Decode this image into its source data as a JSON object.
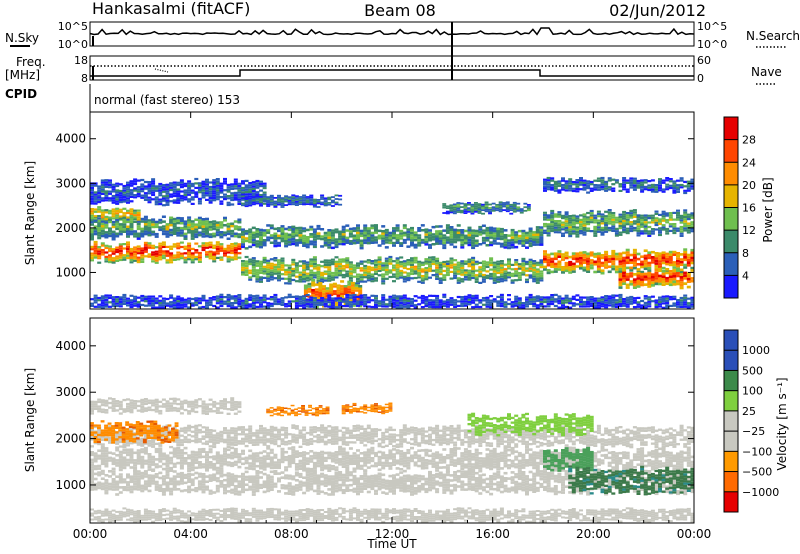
{
  "header": {
    "station": "Hankasalmi (fitACF)",
    "beam": "Beam 08",
    "date": "02/Jun/2012"
  },
  "top_panels": {
    "nsky_label": "N.Sky",
    "nsearch_label": "N.Search",
    "freq_label_1": "Freq.",
    "freq_label_2": "[MHz]",
    "nave_label": "Nave",
    "cpid_label": "CPID",
    "cpid_value": "normal (fast stereo) 153",
    "nsky_ticks": [
      "10^5",
      "10^0"
    ],
    "nsearch_ticks": [
      "10^5",
      "10^0"
    ],
    "freq_ticks": [
      "18",
      "8"
    ],
    "nave_ticks": [
      "60",
      "0"
    ]
  },
  "colors": {
    "power": [
      "#1a1aff",
      "#2b5fb8",
      "#3b8a6a",
      "#6fbf4f",
      "#e6b400",
      "#ff8c00",
      "#ff4500",
      "#e60000"
    ],
    "velocity": [
      "#e60000",
      "#ff6a00",
      "#ff9a00",
      "#c8c8c0",
      "#c8c8c0",
      "#7fcf3f",
      "#3c8a4a",
      "#2a4fb8"
    ],
    "gray": "#c8c8c0"
  },
  "chart_data": [
    {
      "type": "heatmap",
      "title": "",
      "ylabel": "Slant Range [km]",
      "xlabel": "",
      "x_ticks": [
        "00:00",
        "04:00",
        "08:00",
        "12:00",
        "16:00",
        "20:00",
        "00:00"
      ],
      "xlim_hours": [
        0,
        24
      ],
      "y_ticks": [
        1000,
        2000,
        3000,
        4000
      ],
      "ylim": [
        180,
        4600
      ],
      "colorbar": {
        "label": "Power [dB]",
        "ticks": [
          4,
          8,
          12,
          16,
          20,
          24,
          28
        ]
      },
      "bands": [
        {
          "t0": 0.0,
          "t1": 6.0,
          "center": 1450,
          "halfwidth": 200,
          "level": 0.92
        },
        {
          "t0": 0.0,
          "t1": 6.0,
          "center": 2000,
          "halfwidth": 220,
          "level": 0.45
        },
        {
          "t0": 0.0,
          "t1": 2.0,
          "center": 2300,
          "halfwidth": 150,
          "level": 0.65
        },
        {
          "t0": 0.0,
          "t1": 7.0,
          "center": 2800,
          "halfwidth": 250,
          "level": 0.2
        },
        {
          "t0": 6.0,
          "t1": 18.0,
          "center": 1800,
          "halfwidth": 220,
          "level": 0.42
        },
        {
          "t0": 6.0,
          "t1": 18.0,
          "center": 1050,
          "halfwidth": 250,
          "level": 0.55
        },
        {
          "t0": 6.0,
          "t1": 10.0,
          "center": 2600,
          "halfwidth": 120,
          "level": 0.25
        },
        {
          "t0": 8.5,
          "t1": 10.8,
          "center": 500,
          "halfwidth": 280,
          "level": 0.85
        },
        {
          "t0": 14.0,
          "t1": 17.5,
          "center": 2450,
          "halfwidth": 120,
          "level": 0.35
        },
        {
          "t0": 18.0,
          "t1": 24.0,
          "center": 1250,
          "halfwidth": 230,
          "level": 0.9
        },
        {
          "t0": 18.0,
          "t1": 24.0,
          "center": 2100,
          "halfwidth": 250,
          "level": 0.45
        },
        {
          "t0": 18.0,
          "t1": 24.0,
          "center": 2950,
          "halfwidth": 150,
          "level": 0.25
        },
        {
          "t0": 21.0,
          "t1": 24.0,
          "center": 850,
          "halfwidth": 180,
          "level": 0.95
        },
        {
          "t0": 0.0,
          "t1": 24.0,
          "center": 330,
          "halfwidth": 150,
          "level": 0.18
        }
      ]
    },
    {
      "type": "heatmap",
      "title": "",
      "ylabel": "Slant Range [km]",
      "xlabel": "Time UT",
      "x_ticks": [
        "00:00",
        "04:00",
        "08:00",
        "12:00",
        "16:00",
        "20:00",
        "00:00"
      ],
      "xlim_hours": [
        0,
        24
      ],
      "y_ticks": [
        1000,
        2000,
        3000,
        4000
      ],
      "ylim": [
        180,
        4600
      ],
      "colorbar": {
        "label": "Velocity [m s⁻¹]",
        "ticks": [
          1000,
          500,
          100,
          25,
          -25,
          -100,
          -500,
          -1000
        ]
      },
      "bands": [
        {
          "t0": 0.0,
          "t1": 24.0,
          "center": 1550,
          "halfwidth": 220,
          "vel": "gray"
        },
        {
          "t0": 0.0,
          "t1": 24.0,
          "center": 2050,
          "halfwidth": 200,
          "vel": "gray"
        },
        {
          "t0": 0.0,
          "t1": 24.0,
          "center": 1050,
          "halfwidth": 220,
          "vel": "gray"
        },
        {
          "t0": 0.0,
          "t1": 3.5,
          "center": 2150,
          "halfwidth": 200,
          "vel": "orange"
        },
        {
          "t0": 0.0,
          "t1": 6.0,
          "center": 2700,
          "halfwidth": 150,
          "vel": "gray"
        },
        {
          "t0": 7.0,
          "t1": 9.5,
          "center": 2600,
          "halfwidth": 100,
          "vel": "orange"
        },
        {
          "t0": 10.0,
          "t1": 12.0,
          "center": 2650,
          "halfwidth": 100,
          "vel": "orange"
        },
        {
          "t0": 15.0,
          "t1": 20.0,
          "center": 2300,
          "halfwidth": 200,
          "vel": "lightgreen"
        },
        {
          "t0": 18.0,
          "t1": 20.0,
          "center": 1550,
          "halfwidth": 220,
          "vel": "green"
        },
        {
          "t0": 19.0,
          "t1": 24.0,
          "center": 1100,
          "halfwidth": 250,
          "vel": "darkgreen"
        },
        {
          "t0": 0.0,
          "t1": 24.0,
          "center": 350,
          "halfwidth": 130,
          "vel": "gray"
        }
      ]
    }
  ]
}
